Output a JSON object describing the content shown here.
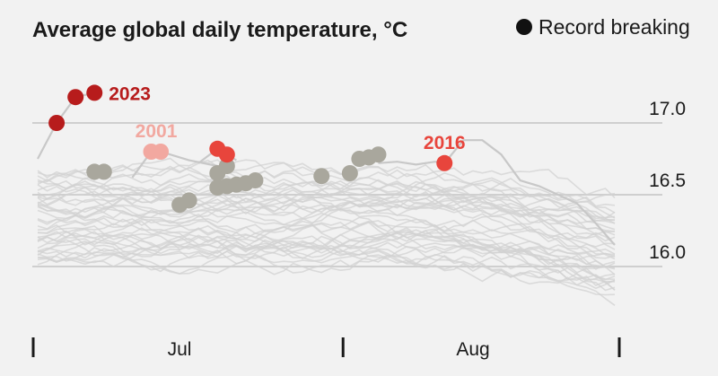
{
  "chart_data": {
    "type": "line",
    "title": "Average global daily temperature, °C",
    "legend": {
      "label": "Record breaking",
      "marker_color": "#111111",
      "placement": "top-right"
    },
    "y_ticks": [
      16.0,
      16.5,
      17.0
    ],
    "ylim": [
      15.75,
      17.35
    ],
    "x_ticks": [
      {
        "label": "Jul",
        "day": 15
      },
      {
        "label": "Aug",
        "day": 46
      }
    ],
    "x_boundaries": [
      0,
      30,
      61
    ],
    "xlim": [
      0,
      61
    ],
    "background_series_color": "#d2d2d2",
    "highlight_series": [
      {
        "name": "2023",
        "color": "#b71c1c",
        "x": [
          0,
          2,
          4,
          6
        ],
        "y": [
          16.75,
          17.0,
          17.18,
          17.21
        ],
        "record_x": [
          2,
          4,
          6
        ]
      },
      {
        "name": "2001",
        "color": "#f2a8a0",
        "x": [
          10,
          12,
          13,
          16,
          19
        ],
        "y": [
          16.62,
          16.8,
          16.8,
          16.74,
          16.7
        ],
        "record_x": [
          12,
          13
        ]
      },
      {
        "name": "2016",
        "color": "#e8453c",
        "x": [
          36,
          38,
          40,
          42,
          43,
          45,
          47,
          49,
          51,
          53,
          55,
          57,
          59,
          61
        ],
        "y": [
          16.72,
          16.73,
          16.71,
          16.73,
          16.72,
          16.88,
          16.88,
          16.78,
          16.6,
          16.56,
          16.5,
          16.44,
          16.3,
          16.15
        ],
        "record_x": [
          43
        ]
      },
      {
        "name": "2016 Jun",
        "color": "#e8453c",
        "x": [
          17,
          19,
          21
        ],
        "y": [
          16.72,
          16.82,
          16.74
        ],
        "record_x": [
          19,
          20
        ]
      }
    ],
    "record_points_other": {
      "color": "#a9a79d",
      "points": [
        {
          "x": 6,
          "y": 16.66
        },
        {
          "x": 7,
          "y": 16.66
        },
        {
          "x": 15,
          "y": 16.43
        },
        {
          "x": 16,
          "y": 16.46
        },
        {
          "x": 19,
          "y": 16.65
        },
        {
          "x": 20,
          "y": 16.7
        },
        {
          "x": 19,
          "y": 16.55
        },
        {
          "x": 20,
          "y": 16.56
        },
        {
          "x": 21,
          "y": 16.57
        },
        {
          "x": 22,
          "y": 16.58
        },
        {
          "x": 23,
          "y": 16.6
        },
        {
          "x": 30,
          "y": 16.63
        },
        {
          "x": 33,
          "y": 16.65
        },
        {
          "x": 34,
          "y": 16.75
        },
        {
          "x": 35,
          "y": 16.76
        },
        {
          "x": 36,
          "y": 16.78
        }
      ]
    },
    "annotations": [
      {
        "text": "2023",
        "series": "2023"
      },
      {
        "text": "2001",
        "series": "2001"
      },
      {
        "text": "2016",
        "series": "2016"
      }
    ]
  }
}
